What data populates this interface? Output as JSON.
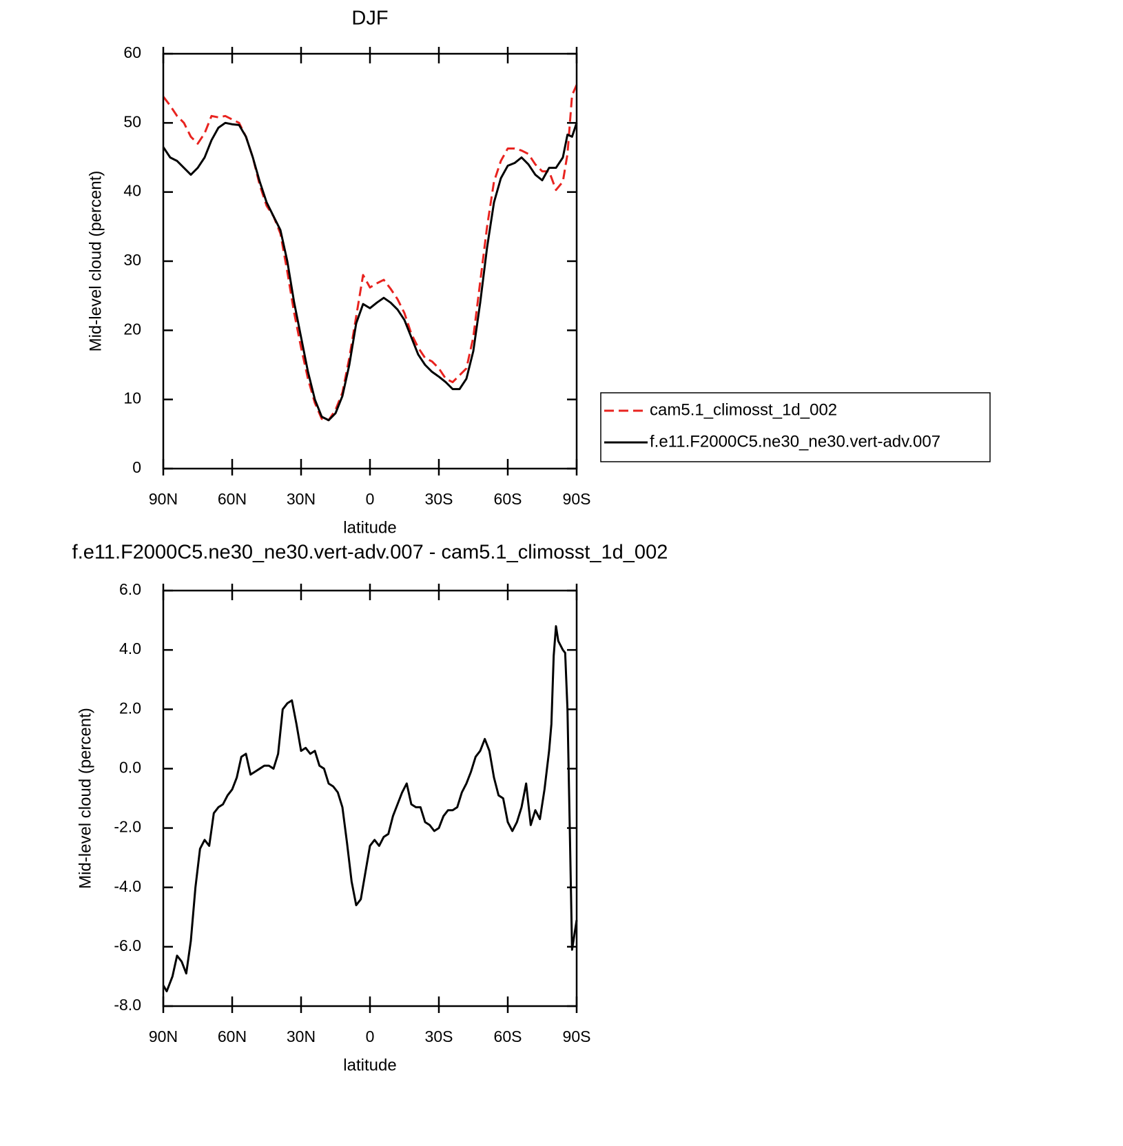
{
  "chart_data": [
    {
      "type": "line",
      "title": "DJF",
      "xlabel": "latitude",
      "ylabel": "Mid-level cloud (percent)",
      "x": [
        90,
        87,
        84,
        81,
        78,
        75,
        72,
        69,
        66,
        63,
        60,
        57,
        54,
        51,
        48,
        45,
        42,
        39,
        36,
        33,
        30,
        27,
        24,
        21,
        18,
        15,
        12,
        9,
        6,
        3,
        0,
        -3,
        -6,
        -9,
        -12,
        -15,
        -18,
        -21,
        -24,
        -27,
        -30,
        -33,
        -36,
        -39,
        -42,
        -45,
        -48,
        -51,
        -54,
        -57,
        -60,
        -63,
        -66,
        -69,
        -72,
        -75,
        -78,
        -81,
        -84,
        -86,
        -88,
        -90
      ],
      "series": [
        {
          "name": "cam5.1_climosst_1d_002",
          "color": "#e8231f",
          "style": "dashed",
          "values": [
            53.8,
            52.5,
            51,
            50,
            48,
            47,
            48.5,
            51,
            50.8,
            51,
            50.5,
            50,
            48,
            45,
            41,
            38,
            36.5,
            34,
            28.5,
            22.5,
            17.5,
            13,
            9.5,
            7.2,
            7,
            8.5,
            11,
            16,
            22,
            28,
            26.2,
            26.8,
            27.3,
            26,
            24.5,
            22.5,
            19.5,
            17.5,
            16,
            15.5,
            14.5,
            13,
            12.5,
            13.5,
            14.5,
            19,
            27,
            35,
            41.5,
            44.5,
            46.3,
            46.3,
            46,
            45.5,
            44,
            43,
            43,
            40.3,
            41.5,
            45.5,
            54,
            55.5
          ]
        },
        {
          "name": "f.e11.F2000C5.ne30_ne30.vert-adv.007",
          "color": "#000000",
          "style": "solid",
          "values": [
            46.5,
            45,
            44.5,
            43.5,
            42.5,
            43.5,
            45,
            47.5,
            49.3,
            50,
            49.8,
            49.7,
            48,
            45,
            41.5,
            38.5,
            36.5,
            34.5,
            30,
            24,
            19,
            14,
            10,
            7.5,
            7,
            8,
            10.5,
            15,
            21,
            23.8,
            23.2,
            24,
            24.7,
            24,
            23,
            21.5,
            19,
            16.5,
            15,
            14,
            13.3,
            12.5,
            11.5,
            11.5,
            13,
            17,
            24,
            32,
            38.5,
            42,
            43.8,
            44.2,
            45,
            44,
            42.5,
            41.7,
            43.5,
            43.5,
            45,
            48.3,
            48,
            50
          ]
        }
      ],
      "xlim": [
        90,
        -90
      ],
      "xticks": [
        {
          "value": 90,
          "label": "90N"
        },
        {
          "value": 60,
          "label": "60N"
        },
        {
          "value": 30,
          "label": "30N"
        },
        0,
        {
          "value": -30,
          "label": "30S"
        },
        {
          "value": -60,
          "label": "60S"
        },
        {
          "value": -90,
          "label": "90S"
        }
      ],
      "ylim": [
        0,
        60
      ],
      "yticks": [
        0,
        10,
        20,
        30,
        40,
        50,
        60
      ],
      "legend": "right",
      "grid": false
    },
    {
      "type": "line",
      "title": "f.e11.F2000C5.ne30_ne30.vert-adv.007 - cam5.1_climosst_1d_002",
      "xlabel": "latitude",
      "ylabel": "Mid-level cloud (percent)",
      "x": [
        90,
        88.5,
        86,
        84,
        82,
        80,
        78,
        76,
        74,
        72,
        70,
        68,
        66,
        64,
        62,
        60,
        58,
        56,
        54,
        52,
        50,
        48,
        46,
        44,
        42,
        40,
        38,
        36,
        34,
        32,
        30,
        28,
        26,
        24,
        22,
        20,
        18,
        16,
        14,
        12,
        10,
        8,
        6,
        4,
        2,
        0,
        -2,
        -4,
        -6,
        -8,
        -10,
        -12,
        -14,
        -16,
        -18,
        -20,
        -22,
        -24,
        -26,
        -28,
        -30,
        -32,
        -34,
        -36,
        -38,
        -40,
        -42,
        -44,
        -46,
        -48,
        -50,
        -52,
        -54,
        -56,
        -58,
        -60,
        -62,
        -64,
        -66,
        -68,
        -70,
        -72,
        -74,
        -76,
        -78,
        -79,
        -80,
        -81,
        -82,
        -84,
        -85,
        -86,
        -87,
        -88,
        -90
      ],
      "series": [
        {
          "color": "#000000",
          "style": "solid",
          "values": [
            -7.3,
            -7.5,
            -7.0,
            -6.3,
            -6.5,
            -6.9,
            -5.8,
            -4.0,
            -2.7,
            -2.4,
            -2.6,
            -1.5,
            -1.3,
            -1.2,
            -0.9,
            -0.7,
            -0.3,
            0.4,
            0.5,
            -0.2,
            -0.1,
            0.0,
            0.1,
            0.1,
            0.0,
            0.5,
            2.0,
            2.2,
            2.3,
            1.5,
            0.6,
            0.7,
            0.5,
            0.6,
            0.1,
            0.0,
            -0.5,
            -0.6,
            -0.8,
            -1.3,
            -2.5,
            -3.8,
            -4.6,
            -4.4,
            -3.5,
            -2.6,
            -2.4,
            -2.6,
            -2.3,
            -2.2,
            -1.6,
            -1.2,
            -0.8,
            -0.5,
            -1.2,
            -1.3,
            -1.3,
            -1.8,
            -1.9,
            -2.1,
            -2.0,
            -1.6,
            -1.4,
            -1.4,
            -1.3,
            -0.8,
            -0.5,
            -0.1,
            0.4,
            0.6,
            1.0,
            0.6,
            -0.3,
            -0.9,
            -1.0,
            -1.8,
            -2.1,
            -1.8,
            -1.3,
            -0.5,
            -1.9,
            -1.4,
            -1.7,
            -0.7,
            0.6,
            1.5,
            3.8,
            4.8,
            4.3,
            4.0,
            3.9,
            2.0,
            -2.0,
            -6.1,
            -5.1
          ]
        }
      ],
      "xlim": [
        90,
        -90
      ],
      "xticks": [
        {
          "value": 90,
          "label": "90N"
        },
        {
          "value": 60,
          "label": "60N"
        },
        {
          "value": 30,
          "label": "30N"
        },
        0,
        {
          "value": -30,
          "label": "30S"
        },
        {
          "value": -60,
          "label": "60S"
        },
        {
          "value": -90,
          "label": "90S"
        }
      ],
      "ylim": [
        -8,
        6
      ],
      "yticks": [
        {
          "value": -8,
          "label": "-8.0"
        },
        {
          "value": -6,
          "label": "-6.0"
        },
        {
          "value": -4,
          "label": "-4.0"
        },
        {
          "value": -2,
          "label": "-2.0"
        },
        {
          "value": 0,
          "label": "0.0"
        },
        {
          "value": 2,
          "label": "2.0"
        },
        {
          "value": 4,
          "label": "4.0"
        },
        {
          "value": 6,
          "label": "6.0"
        }
      ],
      "grid": false
    }
  ]
}
